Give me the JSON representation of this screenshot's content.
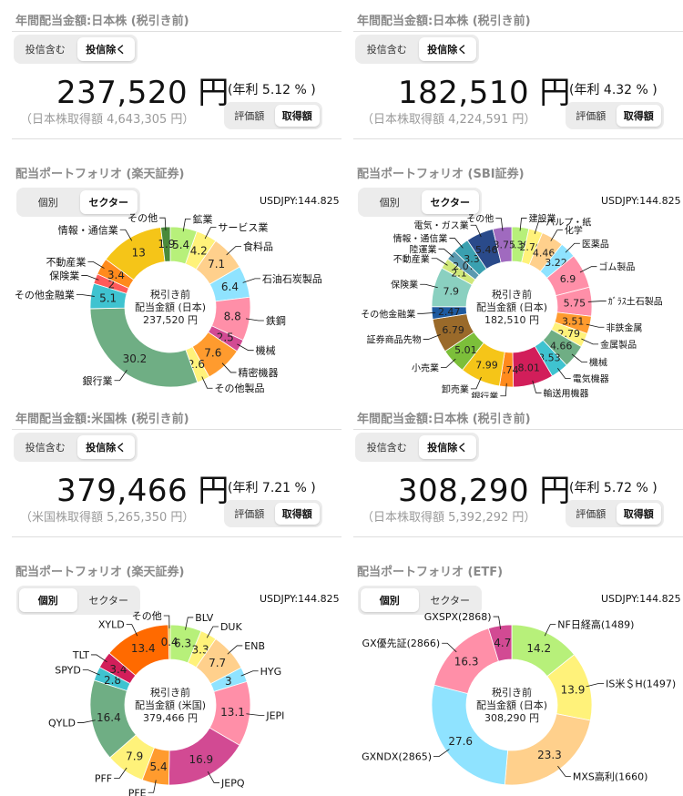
{
  "panels": [
    {
      "section_title": "年間配当金額:日本株 (税引き前)",
      "toggle1": [
        "投信含む",
        "投信除く"
      ],
      "amount": "237,520 円",
      "yield": "(年利 5.12 % )",
      "acquisition": "（日本株取得額 4,643,305 円）",
      "toggle2": [
        "評価額",
        "取得額"
      ],
      "portfolio_title": "配当ポートフォリオ (楽天証券)",
      "toggle3": [
        "個別",
        "セクター"
      ],
      "toggle3_selected": 1,
      "fx": "USDJPY:144.825",
      "center": [
        "税引き前",
        "配当金額 (日本)",
        "237,520 円"
      ],
      "chart_data": {
        "type": "pie",
        "slices": [
          {
            "name": "鉱業",
            "value": 5.4,
            "color": "#b7f07a"
          },
          {
            "name": "サービス業",
            "value": 4.2,
            "color": "#fff27a"
          },
          {
            "name": "食料品",
            "value": 7.1,
            "color": "#ffd08c"
          },
          {
            "name": "石油石炭製品",
            "value": 6.4,
            "color": "#8fe3ff"
          },
          {
            "name": "鉄鋼",
            "value": 8.8,
            "color": "#ff8fa8"
          },
          {
            "name": "機械",
            "value": 2.5,
            "color": "#d24a93"
          },
          {
            "name": "精密機器",
            "value": 7.6,
            "color": "#ff9b2e"
          },
          {
            "name": "その他製品",
            "value": 2.6,
            "color": "#fff27a"
          },
          {
            "name": "銀行業",
            "value": 30.2,
            "color": "#6fae84"
          },
          {
            "name": "その他金融業",
            "value": 5.1,
            "color": "#3fc3d0"
          },
          {
            "name": "保険業",
            "value": 2.0,
            "color": "#ff5a5a"
          },
          {
            "name": "不動産業",
            "value": 3.4,
            "color": "#ff8a1c"
          },
          {
            "name": "情報・通信業",
            "value": 13.0,
            "color": "#f5c518"
          },
          {
            "name": "その他",
            "value": 1.9,
            "color": "#4a8a3a"
          }
        ]
      }
    },
    {
      "section_title": "年間配当金額:日本株 (税引き前)",
      "toggle1": [
        "投信含む",
        "投信除く"
      ],
      "amount": "182,510 円",
      "yield": "(年利 4.32 % )",
      "acquisition": "（日本株取得額 4,224,591 円）",
      "toggle2": [
        "評価額",
        "取得額"
      ],
      "portfolio_title": "配当ポートフォリオ (SBI証券)",
      "toggle3": [
        "個別",
        "セクター"
      ],
      "toggle3_selected": 1,
      "fx": "USDJPY:144.825",
      "center": [
        "税引き前",
        "配当金額 (日本)",
        "182,510 円"
      ],
      "chart_data": {
        "type": "pie",
        "slices": [
          {
            "name": "建設業",
            "value": 3.39,
            "color": "#b7f07a"
          },
          {
            "name": "パルプ・紙",
            "value": 2.76,
            "color": "#fff27a"
          },
          {
            "name": "化学",
            "value": 4.46,
            "color": "#ffd08c"
          },
          {
            "name": "医薬品",
            "value": 3.22,
            "color": "#8fe3ff"
          },
          {
            "name": "ゴム製品",
            "value": 6.9,
            "color": "#ff8fa8"
          },
          {
            "name": "ｶﾞﾗｽ土石製品",
            "value": 5.75,
            "color": "#ff8fa8"
          },
          {
            "name": "非鉄金属",
            "value": 3.51,
            "color": "#ff9b2e"
          },
          {
            "name": "金属製品",
            "value": 2.79,
            "color": "#fff27a"
          },
          {
            "name": "機械",
            "value": 4.66,
            "color": "#6fae84"
          },
          {
            "name": "電気機器",
            "value": 3.53,
            "color": "#3fc3d0"
          },
          {
            "name": "輸送用機器",
            "value": 8.01,
            "color": "#d21e5a"
          },
          {
            "name": "銀行業",
            "value": 2.74,
            "color": "#ff8a1c"
          },
          {
            "name": "卸売業",
            "value": 7.99,
            "color": "#f5c518"
          },
          {
            "name": "小売業",
            "value": 5.01,
            "color": "#7cbf3a"
          },
          {
            "name": "証券商品先物",
            "value": 6.79,
            "color": "#9a6a2a"
          },
          {
            "name": "その他金融業",
            "value": 2.47,
            "color": "#1e5aa0"
          },
          {
            "name": "保険業",
            "value": 7.9,
            "color": "#8ad0c0"
          },
          {
            "name": "不動産業",
            "value": 2.1,
            "color": "#d0e87a"
          },
          {
            "name": "陸運業",
            "value": 2.07,
            "color": "#5a9ab0"
          },
          {
            "name": "情報・通信業",
            "value": 3.3,
            "color": "#3aa0b0"
          },
          {
            "name": "電気・ガス業",
            "value": 5.46,
            "color": "#2a4a8a"
          },
          {
            "name": "その他",
            "value": 3.75,
            "color": "#a06abf"
          }
        ]
      }
    },
    {
      "section_title": "年間配当金額:米国株 (税引き前)",
      "toggle1": [
        "投信含む",
        "投信除く"
      ],
      "amount": "379,466 円",
      "yield": "(年利 7.21 % )",
      "acquisition": "（米国株取得額 5,265,350 円）",
      "toggle2": [
        "評価額",
        "取得額"
      ],
      "portfolio_title": "配当ポートフォリオ (楽天証券)",
      "toggle3": [
        "個別",
        "セクター"
      ],
      "toggle3_selected": 0,
      "fx": "USDJPY:144.825",
      "center": [
        "税引き前",
        "配当金額 (米国)",
        "379,466 円"
      ],
      "chart_data": {
        "type": "pie",
        "slices": [
          {
            "name": "BLV",
            "value": 6.3,
            "color": "#b7f07a"
          },
          {
            "name": "DUK",
            "value": 3.3,
            "color": "#fff27a"
          },
          {
            "name": "ENB",
            "value": 7.7,
            "color": "#ffd08c"
          },
          {
            "name": "HYG",
            "value": 3.0,
            "color": "#8fe3ff"
          },
          {
            "name": "JEPI",
            "value": 13.1,
            "color": "#ff8fa8"
          },
          {
            "name": "JEPQ",
            "value": 16.9,
            "color": "#d24a93"
          },
          {
            "name": "PFE",
            "value": 5.4,
            "color": "#ff9b2e"
          },
          {
            "name": "PFF",
            "value": 7.9,
            "color": "#fff27a"
          },
          {
            "name": "QYLD",
            "value": 16.4,
            "color": "#6fae84"
          },
          {
            "name": "SPYD",
            "value": 2.8,
            "color": "#3fc3d0"
          },
          {
            "name": "TLT",
            "value": 3.4,
            "color": "#d21e5a"
          },
          {
            "name": "XYLD",
            "value": 13.4,
            "color": "#ff6a00"
          },
          {
            "name": "その他",
            "value": 0.4,
            "color": "#d0c020"
          }
        ]
      }
    },
    {
      "section_title": "年間配当金額:日本株 (税引き前)",
      "toggle1": [
        "投信含む",
        "投信除く"
      ],
      "amount": "308,290 円",
      "yield": "(年利 5.72 % )",
      "acquisition": "（日本株取得額 5,392,292 円）",
      "toggle2": [
        "評価額",
        "取得額"
      ],
      "portfolio_title": "配当ポートフォリオ (ETF)",
      "toggle3": [
        "個別",
        "セクター"
      ],
      "toggle3_selected": 0,
      "fx": "USDJPY:144.825",
      "center": [
        "税引き前",
        "配当金額 (日本)",
        "308,290 円"
      ],
      "chart_data": {
        "type": "pie",
        "slices": [
          {
            "name": "NF日経高(1489)",
            "value": 14.2,
            "color": "#b7f07a"
          },
          {
            "name": "IS米＄H(1497)",
            "value": 13.9,
            "color": "#fff27a"
          },
          {
            "name": "MXS高利(1660)",
            "value": 23.3,
            "color": "#ffd08c"
          },
          {
            "name": "GXNDX(2865)",
            "value": 27.6,
            "color": "#8fe3ff"
          },
          {
            "name": "GX優先証(2866)",
            "value": 16.3,
            "color": "#ff8fa8"
          },
          {
            "name": "GXSPX(2868)",
            "value": 4.7,
            "color": "#d24a93"
          }
        ]
      }
    }
  ]
}
